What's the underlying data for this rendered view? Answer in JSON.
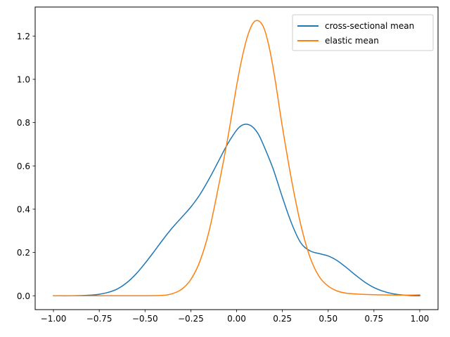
{
  "chart_data": {
    "type": "line",
    "title": "",
    "xlabel": "",
    "ylabel": "",
    "xlim": [
      -1.1,
      1.1
    ],
    "ylim": [
      -0.064,
      1.334
    ],
    "x_ticks": [
      -1.0,
      -0.75,
      -0.5,
      -0.25,
      0.0,
      0.25,
      0.5,
      0.75,
      1.0
    ],
    "x_tick_labels": [
      "−1.00",
      "−0.75",
      "−0.50",
      "−0.25",
      "0.00",
      "0.25",
      "0.50",
      "0.75",
      "1.00"
    ],
    "y_ticks": [
      0.0,
      0.2,
      0.4,
      0.6,
      0.8,
      1.0,
      1.2
    ],
    "y_tick_labels": [
      "0.0",
      "0.2",
      "0.4",
      "0.6",
      "0.8",
      "1.0",
      "1.2"
    ],
    "grid": false,
    "legend_position": "top-right",
    "series": [
      {
        "name": "cross-sectional mean",
        "color": "#1f77b4",
        "x": [
          -1.0,
          -0.9,
          -0.8,
          -0.75,
          -0.7,
          -0.65,
          -0.6,
          -0.55,
          -0.5,
          -0.45,
          -0.4,
          -0.35,
          -0.3,
          -0.25,
          -0.2,
          -0.15,
          -0.1,
          -0.05,
          0.0,
          0.03,
          0.06,
          0.09,
          0.12,
          0.15,
          0.2,
          0.25,
          0.3,
          0.35,
          0.4,
          0.45,
          0.5,
          0.55,
          0.6,
          0.65,
          0.7,
          0.75,
          0.8,
          0.85,
          0.9,
          0.95,
          1.0
        ],
        "y": [
          0.0,
          0.0,
          0.003,
          0.007,
          0.016,
          0.032,
          0.06,
          0.1,
          0.15,
          0.205,
          0.262,
          0.315,
          0.362,
          0.41,
          0.468,
          0.54,
          0.62,
          0.7,
          0.765,
          0.788,
          0.792,
          0.778,
          0.745,
          0.69,
          0.585,
          0.455,
          0.335,
          0.245,
          0.208,
          0.195,
          0.184,
          0.162,
          0.13,
          0.095,
          0.063,
          0.038,
          0.021,
          0.01,
          0.004,
          0.001,
          0.0
        ]
      },
      {
        "name": "elastic mean",
        "color": "#ff7f0e",
        "x": [
          -1.0,
          -0.8,
          -0.6,
          -0.5,
          -0.4,
          -0.35,
          -0.3,
          -0.25,
          -0.2,
          -0.15,
          -0.1,
          -0.05,
          0.0,
          0.03,
          0.06,
          0.09,
          0.12,
          0.15,
          0.18,
          0.21,
          0.25,
          0.3,
          0.35,
          0.4,
          0.45,
          0.5,
          0.55,
          0.6,
          0.7,
          0.8,
          0.9,
          1.0
        ],
        "y": [
          0.0,
          0.0,
          0.0,
          0.0,
          0.002,
          0.01,
          0.03,
          0.075,
          0.16,
          0.3,
          0.5,
          0.72,
          0.97,
          1.1,
          1.2,
          1.26,
          1.27,
          1.235,
          1.14,
          1.0,
          0.78,
          0.535,
          0.33,
          0.18,
          0.09,
          0.045,
          0.022,
          0.012,
          0.006,
          0.004,
          0.003,
          0.004
        ]
      }
    ]
  }
}
